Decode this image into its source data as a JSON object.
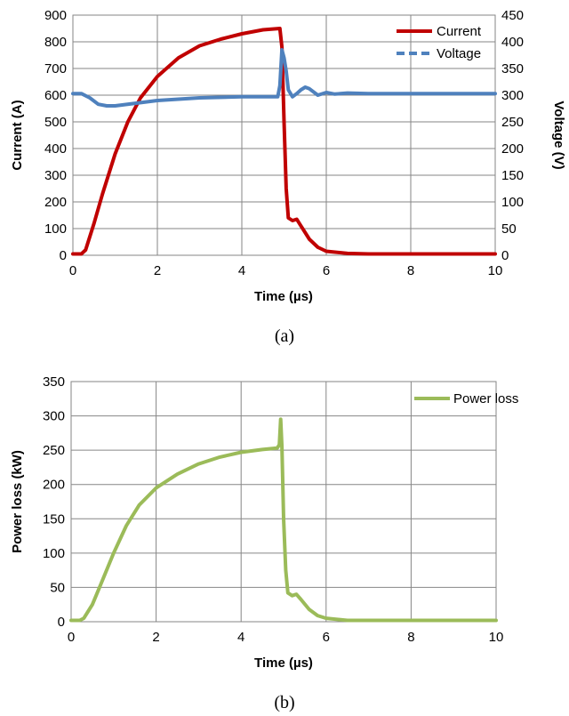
{
  "chart_data": [
    {
      "id": "a",
      "type": "line",
      "caption": "(a)",
      "xlabel": "Time (µs)",
      "ylabel": "Current (A)",
      "y2label": "Voltage (V)",
      "xlim": [
        0,
        10
      ],
      "ylim": [
        0,
        900
      ],
      "y2lim": [
        0,
        450
      ],
      "xticks": [
        "0",
        "2",
        "4",
        "6",
        "8",
        "10"
      ],
      "yticks": [
        "0",
        "100",
        "200",
        "300",
        "400",
        "500",
        "600",
        "700",
        "800",
        "900"
      ],
      "y2ticks": [
        "0",
        "50",
        "100",
        "150",
        "200",
        "250",
        "300",
        "350",
        "400",
        "450"
      ],
      "grid": true,
      "legend_position": "top-right",
      "series": [
        {
          "name": "Current",
          "axis": "left",
          "color": "#c00000",
          "style": "solid",
          "x": [
            0,
            0.2,
            0.3,
            0.5,
            0.7,
            1.0,
            1.3,
            1.6,
            2.0,
            2.5,
            3.0,
            3.5,
            4.0,
            4.5,
            4.9,
            4.95,
            5.0,
            5.05,
            5.1,
            5.2,
            5.3,
            5.4,
            5.6,
            5.8,
            6.0,
            6.5,
            7,
            8,
            9,
            10
          ],
          "y": [
            5,
            5,
            20,
            120,
            230,
            380,
            500,
            590,
            670,
            740,
            785,
            810,
            830,
            845,
            850,
            780,
            500,
            250,
            140,
            130,
            135,
            110,
            60,
            30,
            15,
            7,
            5,
            5,
            5,
            5
          ]
        },
        {
          "name": "Voltage",
          "axis": "right",
          "color": "#4f81bd",
          "style": "dashed",
          "x": [
            0,
            0.2,
            0.4,
            0.6,
            0.8,
            1.0,
            1.5,
            2.0,
            3.0,
            4.0,
            4.85,
            4.9,
            4.95,
            5.0,
            5.05,
            5.1,
            5.2,
            5.3,
            5.4,
            5.5,
            5.6,
            5.8,
            6.0,
            6.2,
            6.5,
            7,
            8,
            9,
            10
          ],
          "y": [
            303,
            303,
            295,
            283,
            280,
            280,
            285,
            290,
            295,
            297,
            297,
            318,
            385,
            370,
            345,
            310,
            297,
            303,
            310,
            315,
            312,
            300,
            305,
            302,
            304,
            303,
            303,
            303,
            303
          ]
        }
      ]
    },
    {
      "id": "b",
      "type": "line",
      "caption": "(b)",
      "xlabel": "Time (µs)",
      "ylabel": "Power loss (kW)",
      "xlim": [
        0,
        10
      ],
      "ylim": [
        0,
        350
      ],
      "xticks": [
        "0",
        "2",
        "4",
        "6",
        "8",
        "10"
      ],
      "yticks": [
        "0",
        "50",
        "100",
        "150",
        "200",
        "250",
        "300",
        "350"
      ],
      "grid": true,
      "legend_position": "top-right",
      "series": [
        {
          "name": "Power loss",
          "axis": "left",
          "color": "#9bbb59",
          "style": "solid",
          "x": [
            0,
            0.2,
            0.3,
            0.5,
            0.7,
            1.0,
            1.3,
            1.6,
            2.0,
            2.5,
            3.0,
            3.5,
            4.0,
            4.5,
            4.85,
            4.9,
            4.93,
            4.96,
            5.0,
            5.05,
            5.1,
            5.2,
            5.3,
            5.4,
            5.6,
            5.8,
            6.0,
            6.5,
            7,
            8,
            9,
            10
          ],
          "y": [
            2,
            2,
            5,
            25,
            55,
            100,
            140,
            170,
            195,
            215,
            230,
            240,
            247,
            251,
            253,
            258,
            295,
            255,
            150,
            75,
            42,
            38,
            40,
            33,
            18,
            9,
            5,
            2,
            2,
            2,
            2,
            2
          ]
        }
      ]
    }
  ]
}
